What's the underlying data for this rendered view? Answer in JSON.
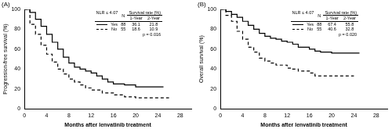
{
  "chart_data": [
    {
      "type": "line",
      "panel_label": "(A)",
      "y_label": "Progression-free survival (%)",
      "x_label": "Months after lenvatinib treatment",
      "xlim": [
        0,
        30
      ],
      "xticks": [
        0,
        4,
        8,
        12,
        16,
        20,
        24,
        28
      ],
      "ylim": [
        0,
        100
      ],
      "yticks": [
        0,
        20,
        40,
        60,
        80,
        100
      ],
      "grid": false,
      "series": [
        {
          "name": "Yes",
          "color": "#000000",
          "line_style": "solid",
          "x": [
            0,
            1,
            2,
            3,
            4,
            5,
            6,
            7,
            8,
            9,
            10,
            11,
            12,
            13,
            14,
            15,
            16,
            18,
            20,
            22,
            25
          ],
          "values": [
            100,
            97,
            90,
            83,
            75,
            67,
            60,
            52,
            46,
            42,
            40,
            38,
            36,
            33,
            30,
            27,
            25,
            24,
            22,
            22,
            22
          ]
        },
        {
          "name": "No",
          "color": "#000000",
          "line_style": "dashed",
          "x": [
            0,
            1,
            2,
            3,
            4,
            5,
            6,
            7,
            8,
            9,
            10,
            11,
            12,
            14,
            16,
            18,
            20,
            24,
            26
          ],
          "values": [
            100,
            85,
            75,
            64,
            55,
            47,
            40,
            35,
            30,
            27,
            24,
            21,
            19,
            16,
            14,
            12,
            11,
            11,
            11
          ]
        }
      ],
      "table": {
        "header": [
          "NLR ≤ 4.07",
          "N",
          "Survival rate (%)"
        ],
        "subheader": [
          "1-Year",
          "2-Year"
        ],
        "rows": [
          {
            "name": "Yes",
            "n": 88,
            "one_year": 36.1,
            "two_year": 21.8
          },
          {
            "name": "No",
            "n": 55,
            "one_year": 18.6,
            "two_year": 10.9
          }
        ]
      },
      "annotation": "p = 0.016"
    },
    {
      "type": "line",
      "panel_label": "(B)",
      "y_label": "Overall survival (%)",
      "x_label": "Months after lenvatinib treatment",
      "xlim": [
        0,
        30
      ],
      "xticks": [
        0,
        4,
        8,
        12,
        16,
        20,
        24,
        28
      ],
      "ylim": [
        0,
        100
      ],
      "yticks": [
        0,
        20,
        40,
        60,
        80,
        100
      ],
      "grid": false,
      "series": [
        {
          "name": "Yes",
          "color": "#000000",
          "line_style": "solid",
          "x": [
            0,
            1,
            2,
            3,
            4,
            5,
            6,
            7,
            8,
            9,
            10,
            11,
            12,
            13,
            14,
            16,
            17,
            18,
            20,
            22,
            25
          ],
          "values": [
            100,
            98,
            95,
            92,
            88,
            84,
            80,
            76,
            73,
            71,
            70,
            68,
            67,
            65,
            62,
            60,
            58,
            57,
            56,
            56,
            56
          ]
        },
        {
          "name": "No",
          "color": "#000000",
          "line_style": "dashed",
          "x": [
            0,
            1,
            2,
            3,
            4,
            5,
            6,
            7,
            8,
            9,
            10,
            12,
            13,
            14,
            16,
            17,
            18,
            20,
            24
          ],
          "values": [
            100,
            94,
            88,
            78,
            70,
            62,
            57,
            51,
            48,
            46,
            44,
            41,
            40,
            38,
            36,
            33,
            33,
            33,
            33
          ]
        }
      ],
      "table": {
        "header": [
          "NLR ≤ 4.07",
          "N",
          "Survival rate (%)"
        ],
        "subheader": [
          "1-Year",
          "2-Year"
        ],
        "rows": [
          {
            "name": "Yes",
            "n": 88,
            "one_year": 67.4,
            "two_year": 55.8
          },
          {
            "name": "No",
            "n": 55,
            "one_year": 40.6,
            "two_year": 32.8
          }
        ]
      },
      "annotation": "p = 0.020"
    }
  ]
}
